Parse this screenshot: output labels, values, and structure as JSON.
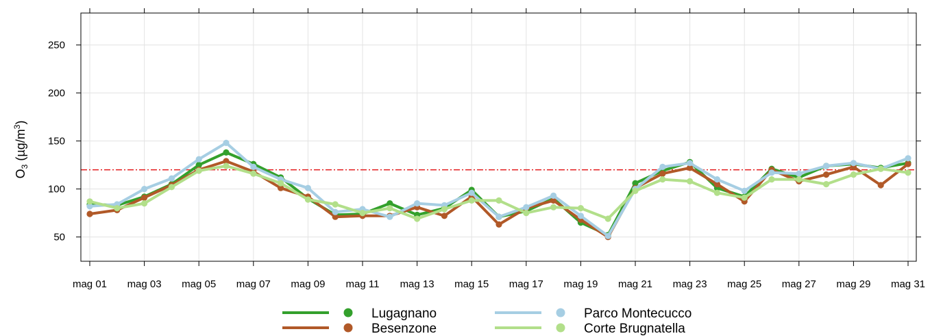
{
  "chart_data": {
    "type": "line",
    "ylabel": {
      "main": "O",
      "sub": "3",
      "unit_prefix": " (µg/m",
      "sup": "3",
      "unit_suffix": ")"
    },
    "xlim": [
      1,
      31
    ],
    "ylim": [
      0,
      260
    ],
    "yticks": [
      50,
      100,
      150,
      200,
      250
    ],
    "x": [
      1,
      2,
      3,
      4,
      5,
      6,
      7,
      8,
      9,
      10,
      11,
      12,
      13,
      14,
      15,
      16,
      17,
      18,
      19,
      20,
      21,
      22,
      23,
      24,
      25,
      26,
      27,
      28,
      29,
      30,
      31
    ],
    "xticks": [
      {
        "x": 1,
        "label": "mag 01"
      },
      {
        "x": 3,
        "label": "mag 03"
      },
      {
        "x": 5,
        "label": "mag 05"
      },
      {
        "x": 7,
        "label": "mag 07"
      },
      {
        "x": 9,
        "label": "mag 09"
      },
      {
        "x": 11,
        "label": "mag 11"
      },
      {
        "x": 13,
        "label": "mag 13"
      },
      {
        "x": 15,
        "label": "mag 15"
      },
      {
        "x": 17,
        "label": "mag 17"
      },
      {
        "x": 19,
        "label": "mag 19"
      },
      {
        "x": 21,
        "label": "mag 21"
      },
      {
        "x": 23,
        "label": "mag 23"
      },
      {
        "x": 25,
        "label": "mag 25"
      },
      {
        "x": 27,
        "label": "mag 27"
      },
      {
        "x": 29,
        "label": "mag 29"
      },
      {
        "x": 31,
        "label": "mag 31"
      }
    ],
    "threshold": {
      "value": 120,
      "color": "#e31a1c"
    },
    "grid": true,
    "legend_position": "bottom",
    "series": [
      {
        "name": "Lugagnano",
        "color": "#33a02c",
        "values": [
          84,
          83,
          92,
          105,
          125,
          138,
          126,
          112,
          90,
          73,
          74,
          85,
          73,
          80,
          99,
          71,
          77,
          90,
          65,
          52,
          106,
          119,
          128,
          101,
          92,
          121,
          112,
          124,
          126,
          122,
          127
        ]
      },
      {
        "name": "Besenzone",
        "color": "#b15928",
        "values": [
          74,
          78,
          91,
          104,
          120,
          129,
          118,
          101,
          92,
          71,
          72,
          72,
          81,
          72,
          92,
          63,
          80,
          88,
          68,
          50,
          101,
          116,
          122,
          105,
          87,
          120,
          108,
          115,
          123,
          104,
          126
        ]
      },
      {
        "name": "Parco Montecucco",
        "color": "#a6cee3",
        "values": [
          82,
          84,
          100,
          111,
          131,
          148,
          123,
          110,
          101,
          76,
          79,
          71,
          85,
          83,
          96,
          71,
          81,
          93,
          72,
          51,
          100,
          123,
          127,
          110,
          98,
          117,
          116,
          124,
          127,
          121,
          132
        ]
      },
      {
        "name": "Corte Brugnatella",
        "color": "#b2df8a",
        "values": [
          87,
          80,
          85,
          102,
          119,
          124,
          116,
          106,
          89,
          84,
          75,
          80,
          69,
          79,
          88,
          88,
          75,
          81,
          80,
          69,
          98,
          110,
          108,
          96,
          91,
          110,
          110,
          105,
          115,
          121,
          117
        ]
      }
    ]
  }
}
